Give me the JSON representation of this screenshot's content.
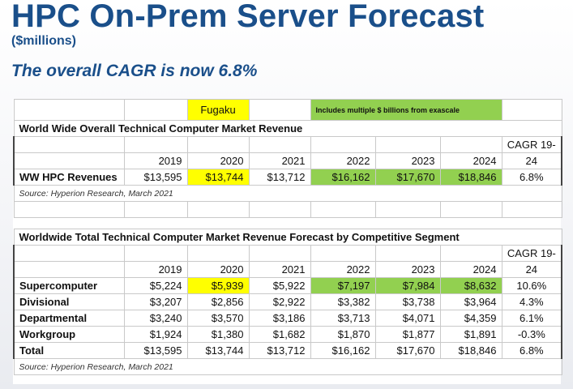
{
  "header": {
    "title": "HPC On-Prem Server Forecast",
    "subtitle": "($millions)",
    "cagr_statement": "The overall CAGR is now 6.8%"
  },
  "labels": {
    "fugaku": "Fugaku",
    "exascale_note": "Includes multiple $ billions from exascale"
  },
  "table1": {
    "title": "World Wide Overall Technical Computer Market Revenue",
    "cagr_header_1": "CAGR 19-",
    "cagr_header_2": "24",
    "years": [
      "2019",
      "2020",
      "2021",
      "2022",
      "2023",
      "2024"
    ],
    "row": {
      "label": "WW HPC Revenues",
      "values": [
        "$13,595",
        "$13,744",
        "$13,712",
        "$16,162",
        "$17,670",
        "$18,846"
      ],
      "cagr": "6.8%"
    },
    "source": "Source: Hyperion Research, March 2021"
  },
  "table2": {
    "title": "Worldwide Total Technical Computer Market Revenue Forecast by Competitive Segment",
    "cagr_header_1": "CAGR 19-",
    "cagr_header_2": "24",
    "years": [
      "2019",
      "2020",
      "2021",
      "2022",
      "2023",
      "2024"
    ],
    "rows": [
      {
        "label": "Supercomputer",
        "values": [
          "$5,224",
          "$5,939",
          "$5,922",
          "$7,197",
          "$7,984",
          "$8,632"
        ],
        "cagr": "10.6%"
      },
      {
        "label": "Divisional",
        "values": [
          "$3,207",
          "$2,856",
          "$2,922",
          "$3,382",
          "$3,738",
          "$3,964"
        ],
        "cagr": "4.3%"
      },
      {
        "label": "Departmental",
        "values": [
          "$3,240",
          "$3,570",
          "$3,186",
          "$3,713",
          "$4,071",
          "$4,359"
        ],
        "cagr": "6.1%"
      },
      {
        "label": "Workgroup",
        "values": [
          "$1,924",
          "$1,380",
          "$1,682",
          "$1,870",
          "$1,877",
          "$1,891"
        ],
        "cagr": "-0.3%"
      },
      {
        "label": "Total",
        "values": [
          "$13,595",
          "$13,744",
          "$13,712",
          "$16,162",
          "$17,670",
          "$18,846"
        ],
        "cagr": "6.8%"
      }
    ],
    "source": "Source: Hyperion Research, March 2021"
  }
}
